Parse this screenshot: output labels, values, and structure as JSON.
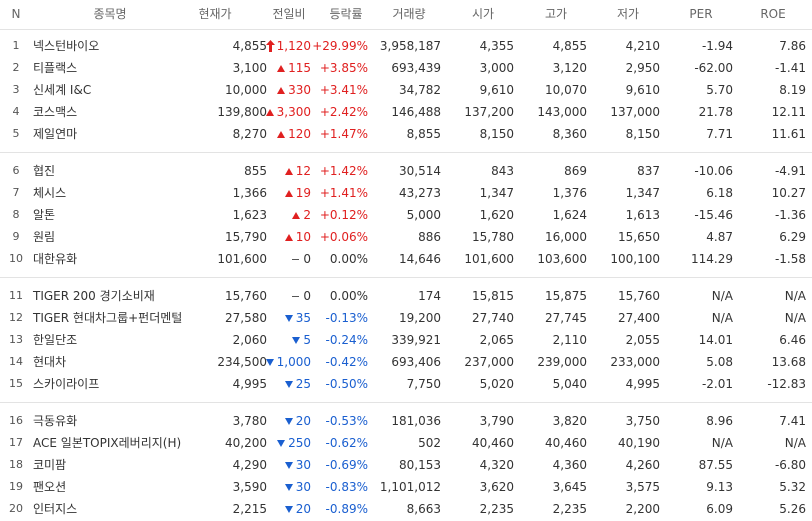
{
  "table": {
    "header": [
      "N",
      "종목명",
      "현재가",
      "전일비",
      "등락률",
      "거래량",
      "시가",
      "고가",
      "저가",
      "PER",
      "ROE"
    ],
    "groups": [
      {
        "rows": [
          {
            "direction": "limit-up",
            "cells": [
              "1",
              "넥스턴바이오",
              "4,855",
              "1,120",
              "+29.99%",
              "3,958,187",
              "4,355",
              "4,855",
              "4,210",
              "-1.94",
              "7.86"
            ]
          },
          {
            "direction": "up",
            "cells": [
              "2",
              "티플랙스",
              "3,100",
              "115",
              "+3.85%",
              "693,439",
              "3,000",
              "3,120",
              "2,950",
              "-62.00",
              "-1.41"
            ]
          },
          {
            "direction": "up",
            "cells": [
              "3",
              "신세계 I&C",
              "10,000",
              "330",
              "+3.41%",
              "34,782",
              "9,610",
              "10,070",
              "9,610",
              "5.70",
              "8.19"
            ]
          },
          {
            "direction": "up",
            "cells": [
              "4",
              "코스맥스",
              "139,800",
              "3,300",
              "+2.42%",
              "146,488",
              "137,200",
              "143,000",
              "137,000",
              "21.78",
              "12.11"
            ]
          },
          {
            "direction": "up",
            "cells": [
              "5",
              "제일연마",
              "8,270",
              "120",
              "+1.47%",
              "8,855",
              "8,150",
              "8,360",
              "8,150",
              "7.71",
              "11.61"
            ]
          }
        ]
      },
      {
        "rows": [
          {
            "direction": "up",
            "cells": [
              "6",
              "협진",
              "855",
              "12",
              "+1.42%",
              "30,514",
              "843",
              "869",
              "837",
              "-10.06",
              "-4.91"
            ]
          },
          {
            "direction": "up",
            "cells": [
              "7",
              "체시스",
              "1,366",
              "19",
              "+1.41%",
              "43,273",
              "1,347",
              "1,376",
              "1,347",
              "6.18",
              "10.27"
            ]
          },
          {
            "direction": "up",
            "cells": [
              "8",
              "알톤",
              "1,623",
              "2",
              "+0.12%",
              "5,000",
              "1,620",
              "1,624",
              "1,613",
              "-15.46",
              "-1.36"
            ]
          },
          {
            "direction": "up",
            "cells": [
              "9",
              "원림",
              "15,790",
              "10",
              "+0.06%",
              "886",
              "15,780",
              "16,000",
              "15,650",
              "4.87",
              "6.29"
            ]
          },
          {
            "direction": "flat",
            "cells": [
              "10",
              "대한유화",
              "101,600",
              "0",
              "0.00%",
              "14,646",
              "101,600",
              "103,600",
              "100,100",
              "114.29",
              "-1.58"
            ]
          }
        ]
      },
      {
        "rows": [
          {
            "direction": "flat",
            "cells": [
              "11",
              "TIGER 200 경기소비재",
              "15,760",
              "0",
              "0.00%",
              "174",
              "15,815",
              "15,875",
              "15,760",
              "N/A",
              "N/A"
            ]
          },
          {
            "direction": "down",
            "cells": [
              "12",
              "TIGER 현대차그룹+펀더멘털",
              "27,580",
              "35",
              "-0.13%",
              "19,200",
              "27,740",
              "27,745",
              "27,400",
              "N/A",
              "N/A"
            ]
          },
          {
            "direction": "down",
            "cells": [
              "13",
              "한일단조",
              "2,060",
              "5",
              "-0.24%",
              "339,921",
              "2,065",
              "2,110",
              "2,055",
              "14.01",
              "6.46"
            ]
          },
          {
            "direction": "down",
            "cells": [
              "14",
              "현대차",
              "234,500",
              "1,000",
              "-0.42%",
              "693,406",
              "237,000",
              "239,000",
              "233,000",
              "5.08",
              "13.68"
            ]
          },
          {
            "direction": "down",
            "cells": [
              "15",
              "스카이라이프",
              "4,995",
              "25",
              "-0.50%",
              "7,750",
              "5,020",
              "5,040",
              "4,995",
              "-2.01",
              "-12.83"
            ]
          }
        ]
      },
      {
        "rows": [
          {
            "direction": "down",
            "cells": [
              "16",
              "극동유화",
              "3,780",
              "20",
              "-0.53%",
              "181,036",
              "3,790",
              "3,820",
              "3,750",
              "8.96",
              "7.41"
            ]
          },
          {
            "direction": "down",
            "cells": [
              "17",
              "ACE 일본TOPIX레버리지(H)",
              "40,200",
              "250",
              "-0.62%",
              "502",
              "40,460",
              "40,460",
              "40,190",
              "N/A",
              "N/A"
            ]
          },
          {
            "direction": "down",
            "cells": [
              "18",
              "코미팜",
              "4,290",
              "30",
              "-0.69%",
              "80,153",
              "4,320",
              "4,360",
              "4,260",
              "87.55",
              "-6.80"
            ]
          },
          {
            "direction": "down",
            "cells": [
              "19",
              "팬오션",
              "3,590",
              "30",
              "-0.83%",
              "1,101,012",
              "3,620",
              "3,645",
              "3,575",
              "9.13",
              "5.32"
            ]
          },
          {
            "direction": "down",
            "cells": [
              "20",
              "인터지스",
              "2,215",
              "20",
              "-0.89%",
              "8,663",
              "2,235",
              "2,235",
              "2,200",
              "6.09",
              "5.26"
            ]
          }
        ]
      }
    ]
  }
}
